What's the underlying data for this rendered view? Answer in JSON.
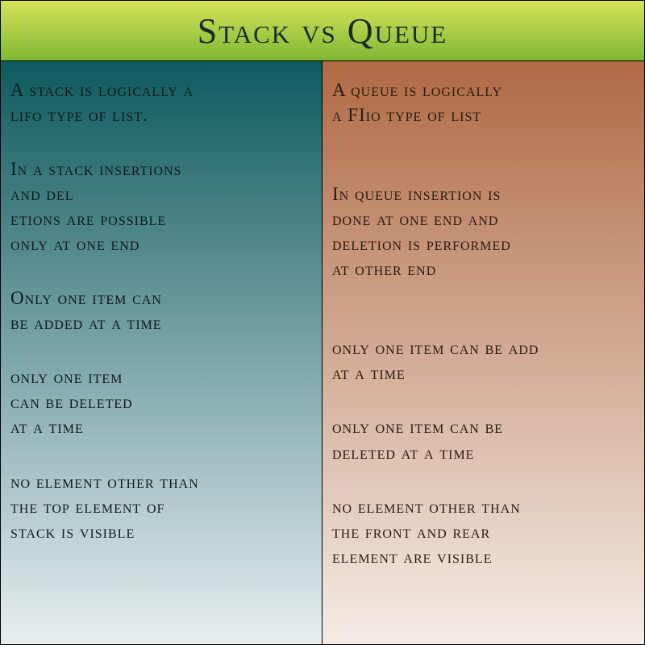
{
  "title": "Stack vs Queue",
  "header": {
    "gradient_top": "#d6e25a",
    "gradient_bottom": "#7fb833",
    "title_color": "#1a2a2a",
    "title_fontsize": 44
  },
  "columns": {
    "left": {
      "gradient_top": "#0d5a5f",
      "gradient_bottom": "#e8eef0",
      "text_color": "#101a1a",
      "fontsize": 23,
      "blocks": [
        "A stack is logically a\nlifo type of list.",
        "In a stack insertions\nand del\netions are possible\n only at one end",
        "Only one item can\n be added at a time",
        "only one item\ncan be deleted\nat a time",
        "no element other than\nthe top element of\nstack is visible"
      ]
    },
    "right": {
      "gradient_top": "#b06a44",
      "gradient_bottom": "#f4ece6",
      "text_color": "#2a1a12",
      "fontsize": 23,
      "blocks": [
        "A queue is logically\na FIio type of list",
        "\nIn queue insertion is\ndone at one end and\ndeletion is performed\nat other end",
        "\nonly one item can be add\nat a time",
        "only one item can be\ndeleted at a time",
        "no element other than\nthe front and rear\nelement are visible"
      ]
    }
  },
  "border_color": "#000000"
}
